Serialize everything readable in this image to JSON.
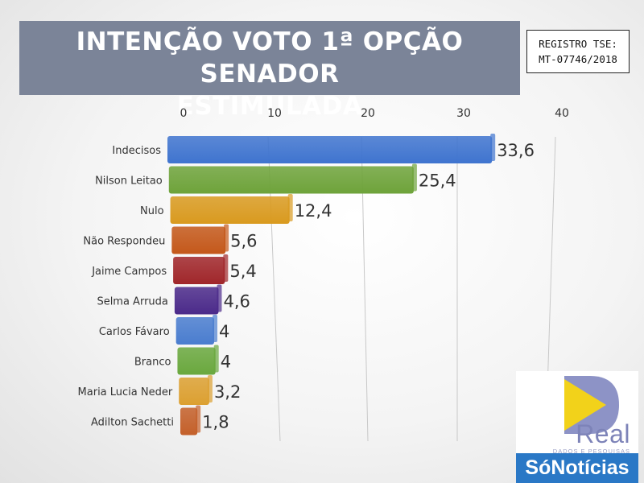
{
  "header": {
    "title_line1": "INTENÇÃO VOTO 1ª OPÇÃO SENADOR",
    "title_line2": "ESTIMULADA"
  },
  "registro": {
    "line1": "REGISTRO TSE:",
    "line2": "MT-07746/2018"
  },
  "logos": {
    "real": "Real",
    "real_sub": "DADOS E PESQUISAS",
    "sonoticias": "SóNotícias"
  },
  "chart_data": {
    "type": "bar",
    "orientation": "horizontal",
    "title": "INTENÇÃO VOTO 1ª OPÇÃO SENADOR ESTIMULADA",
    "xlim": [
      0,
      40
    ],
    "ticks": [
      0,
      10,
      20,
      30,
      40
    ],
    "grid": true,
    "categories": [
      "Indecisos",
      "Nilson Leitao",
      "Nulo",
      "Não Respondeu",
      "Jaime Campos",
      "Selma Arruda",
      "Carlos Fávaro",
      "Branco",
      "Maria Lucia Neder",
      "Adilton Sachetti"
    ],
    "values": [
      33.6,
      25.4,
      12.4,
      5.6,
      5.4,
      4.6,
      4,
      4,
      3.2,
      1.8
    ],
    "value_labels": [
      "33,6",
      "25,4",
      "12,4",
      "5,6",
      "5,4",
      "4,6",
      "4",
      "4",
      "3,2",
      "1,8"
    ],
    "colors": [
      "#3f74cf",
      "#6ea33a",
      "#d99a1f",
      "#c4581a",
      "#a0262a",
      "#4b2a8a",
      "#4a7dcf",
      "#6aa83e",
      "#dca031",
      "#c4602a"
    ]
  }
}
